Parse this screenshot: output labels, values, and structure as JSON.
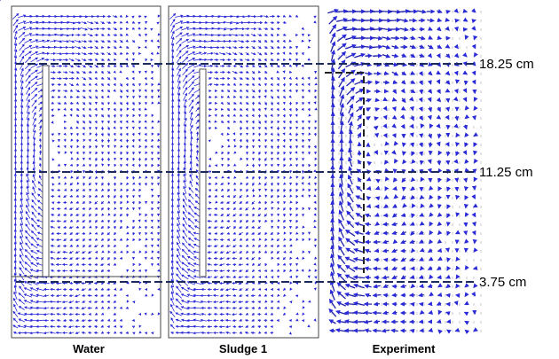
{
  "panels": [
    {
      "label": "Water"
    },
    {
      "label": "Sludge 1"
    },
    {
      "label": "Experiment"
    }
  ],
  "levels": [
    {
      "label": "18.25 cm"
    },
    {
      "label": "11.25 cm"
    },
    {
      "label": "3.75 cm"
    }
  ]
}
